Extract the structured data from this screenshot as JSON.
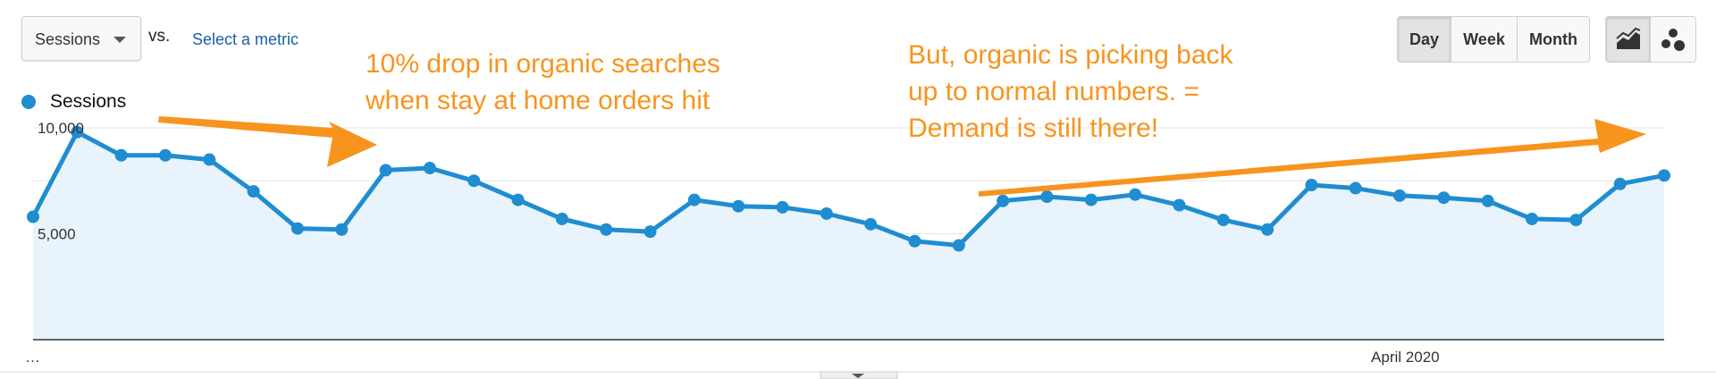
{
  "toolbar": {
    "metric_label": "Sessions",
    "vs_label": "vs.",
    "select_metric_label": "Select a metric",
    "granularity": [
      {
        "label": "Day",
        "active": true
      },
      {
        "label": "Week",
        "active": false
      },
      {
        "label": "Month",
        "active": false
      }
    ],
    "chart_type_icons": [
      {
        "name": "line-chart-icon",
        "active": true
      },
      {
        "name": "motion-chart-icon",
        "active": false
      }
    ]
  },
  "colors": {
    "series": "#1f8dd0",
    "area": "#e8f3fb",
    "annotation": "#f7941d"
  },
  "annotations": [
    {
      "lines": [
        "10% drop in organic searches",
        "when stay at home orders hit"
      ]
    },
    {
      "lines": [
        "But, organic is picking back",
        "up to normal numbers. =",
        "Demand is still there!"
      ]
    }
  ],
  "chart_data": {
    "type": "area",
    "series": [
      {
        "name": "Sessions",
        "values": [
          5800,
          9800,
          8700,
          8700,
          8500,
          7000,
          5250,
          5200,
          8000,
          8100,
          7500,
          6600,
          5700,
          5200,
          5100,
          6600,
          6300,
          6250,
          5950,
          5450,
          4650,
          4450,
          6550,
          6750,
          6600,
          6850,
          6350,
          5650,
          5200,
          7300,
          7150,
          6800,
          6700,
          6550,
          5700,
          5650,
          7350,
          7750
        ]
      }
    ],
    "y_ticks": [
      {
        "value": 10000,
        "label": "10,000"
      },
      {
        "value": 5000,
        "label": "5,000"
      }
    ],
    "ylim": [
      0,
      10000
    ],
    "x_labels": [
      {
        "index": 0,
        "label": "…"
      },
      {
        "index": 31,
        "label": "April 2020"
      }
    ],
    "grid": true,
    "legend_position": "top-left"
  }
}
